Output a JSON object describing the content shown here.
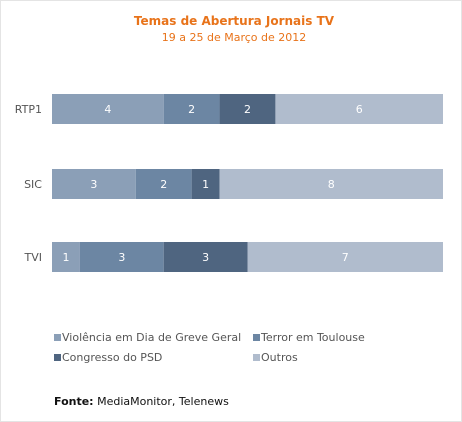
{
  "chart_data": {
    "type": "bar",
    "orientation": "horizontal",
    "stacked": true,
    "title": "Temas de Abertura Jornais TV",
    "subtitle": "19 a 25 de Março de 2012",
    "categories": [
      "RTP1",
      "SIC",
      "TVI"
    ],
    "series": [
      {
        "name": "Violência em Dia de Greve Geral",
        "values": [
          4,
          3,
          1
        ],
        "color": "#8b9fb7"
      },
      {
        "name": "Terror em Toulouse",
        "values": [
          2,
          2,
          3
        ],
        "color": "#6c86a3"
      },
      {
        "name": "Congresso do PSD",
        "values": [
          2,
          1,
          3
        ],
        "color": "#4f6580"
      },
      {
        "name": "Outros",
        "values": [
          6,
          8,
          7
        ],
        "color": "#b0bccd"
      }
    ],
    "xlim": [
      0,
      14
    ],
    "grid": false,
    "legend_position": "bottom"
  },
  "source": {
    "label": "Fonte:",
    "text": " MediaMonitor, Telenews"
  }
}
